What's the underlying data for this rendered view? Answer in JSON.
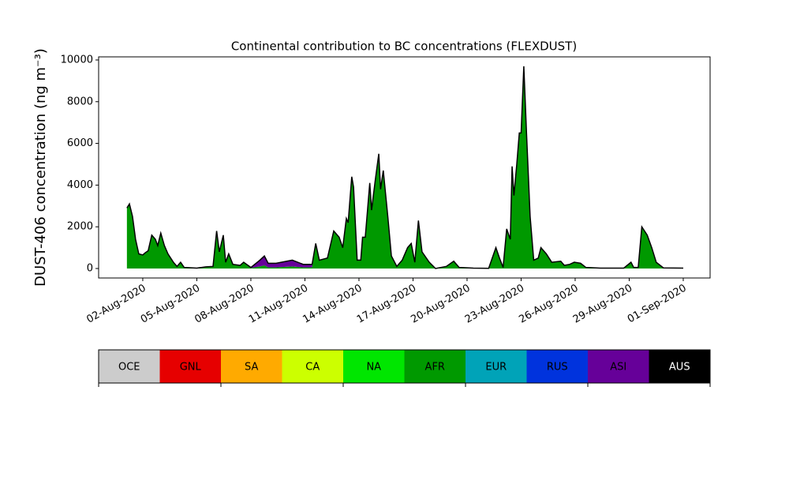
{
  "chart_data": {
    "type": "stacked_area",
    "title": "Continental contribution to BC concentrations (FLEXDUST)",
    "y_label": "DUST-406 concentration (ng m⁻³)",
    "x": [
      1.12,
      1.26,
      1.43,
      1.6,
      1.78,
      2.0,
      2.13,
      2.3,
      2.5,
      2.7,
      2.83,
      3.0,
      3.2,
      3.4,
      3.7,
      3.9,
      4.1,
      4.3,
      5.0,
      5.5,
      5.9,
      6.1,
      6.25,
      6.47,
      6.6,
      6.77,
      7.0,
      7.4,
      7.6,
      8.0,
      8.5,
      8.75,
      8.96,
      9.4,
      10.3,
      10.9,
      11.4,
      11.6,
      11.8,
      12.25,
      12.6,
      12.9,
      13.1,
      13.3,
      13.4,
      13.6,
      13.7,
      13.9,
      14.1,
      14.2,
      14.35,
      14.6,
      14.7,
      14.9,
      15.1,
      15.2,
      15.35,
      15.6,
      15.8,
      16.1,
      16.4,
      16.7,
      16.9,
      17.1,
      17.3,
      17.5,
      17.9,
      18.25,
      18.85,
      19.26,
      19.56,
      20.35,
      21.2,
      21.6,
      21.8,
      22.0,
      22.2,
      22.4,
      22.5,
      22.6,
      22.76,
      22.9,
      23.0,
      23.15,
      23.3,
      23.5,
      23.7,
      23.95,
      24.1,
      24.4,
      24.7,
      25.2,
      25.4,
      25.7,
      25.95,
      26.3,
      26.6,
      27.4,
      28.7,
      29.1,
      29.25,
      29.5,
      29.7,
      30.0,
      30.25,
      30.5,
      30.9,
      32.0
    ],
    "series": [
      {
        "name": "AFR",
        "color": "#009900",
        "values": [
          2900,
          3100,
          2500,
          1400,
          700,
          650,
          750,
          850,
          1600,
          1400,
          1100,
          1700,
          1100,
          700,
          300,
          100,
          300,
          50,
          20,
          80,
          100,
          1800,
          800,
          1600,
          300,
          700,
          200,
          150,
          300,
          20,
          100,
          150,
          50,
          50,
          100,
          50,
          50,
          1200,
          400,
          500,
          1800,
          1500,
          1000,
          2400,
          2200,
          4400,
          3900,
          400,
          400,
          1500,
          1500,
          4100,
          2800,
          4200,
          5500,
          3800,
          4700,
          2500,
          600,
          100,
          400,
          1000,
          1200,
          300,
          2300,
          800,
          300,
          0,
          100,
          350,
          50,
          20,
          10,
          1000,
          500,
          50,
          1900,
          1400,
          4900,
          3500,
          5000,
          6500,
          6500,
          9700,
          6500,
          2500,
          400,
          500,
          1000,
          700,
          300,
          350,
          150,
          200,
          300,
          250,
          50,
          20,
          20,
          300,
          50,
          50,
          2000,
          1600,
          1000,
          300,
          30,
          20
        ]
      },
      {
        "name": "ASI",
        "color": "#660099",
        "values": [
          0,
          0,
          0,
          0,
          0,
          0,
          0,
          0,
          0,
          0,
          0,
          0,
          0,
          0,
          0,
          0,
          0,
          0,
          0,
          0,
          0,
          0,
          0,
          0,
          0,
          0,
          0,
          0,
          0,
          30,
          300,
          450,
          200,
          200,
          300,
          150,
          150,
          0,
          0,
          0,
          0,
          0,
          0,
          0,
          0,
          0,
          0,
          0,
          0,
          0,
          0,
          0,
          0,
          0,
          0,
          0,
          0,
          0,
          0,
          0,
          0,
          0,
          0,
          0,
          0,
          0,
          0,
          0,
          0,
          0,
          0,
          0,
          0,
          0,
          0,
          0,
          0,
          0,
          0,
          0,
          0,
          0,
          0,
          0,
          0,
          0,
          0,
          0,
          0,
          0,
          0,
          0,
          0,
          0,
          0,
          0,
          0,
          0,
          0,
          0,
          0,
          0,
          0,
          0,
          0,
          0,
          0,
          0
        ]
      }
    ],
    "outline_color": "#000000",
    "xlim": [
      -0.45,
      33.49
    ],
    "xticks": [
      {
        "value": 2,
        "label": "02-Aug-2020"
      },
      {
        "value": 5,
        "label": "05-Aug-2020"
      },
      {
        "value": 8,
        "label": "08-Aug-2020"
      },
      {
        "value": 11,
        "label": "11-Aug-2020"
      },
      {
        "value": 14,
        "label": "14-Aug-2020"
      },
      {
        "value": 17,
        "label": "17-Aug-2020"
      },
      {
        "value": 20,
        "label": "20-Aug-2020"
      },
      {
        "value": 23,
        "label": "23-Aug-2020"
      },
      {
        "value": 26,
        "label": "26-Aug-2020"
      },
      {
        "value": 29,
        "label": "29-Aug-2020"
      },
      {
        "value": 32,
        "label": "01-Sep-2020"
      }
    ],
    "ylim": [
      -455,
      10150
    ],
    "yticks": [
      0,
      2000,
      4000,
      6000,
      8000,
      10000
    ],
    "colorbar": {
      "labels": [
        "OCE",
        "GNL",
        "SA",
        "CA",
        "NA",
        "AFR",
        "EUR",
        "RUS",
        "ASI",
        "AUS"
      ],
      "colors": [
        "#cccccc",
        "#e60000",
        "#ffaa00",
        "#ccff00",
        "#00e600",
        "#009900",
        "#00a3b8",
        "#0033dd",
        "#660099",
        "#000000"
      ]
    }
  }
}
